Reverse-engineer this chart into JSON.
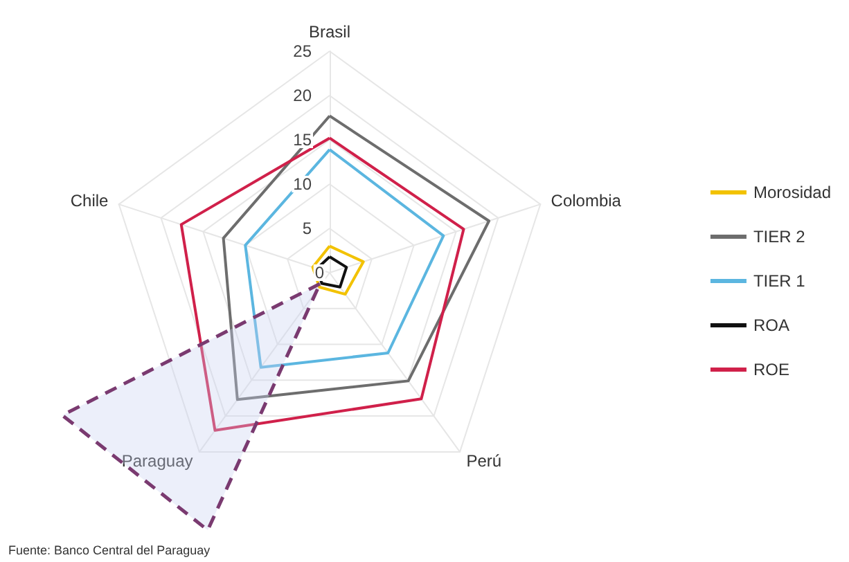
{
  "chart_data": {
    "type": "radar",
    "categories": [
      "Brasil",
      "Colombia",
      "Perú",
      "Paraguay",
      "Chile"
    ],
    "ylim": [
      0,
      25
    ],
    "yticks": [
      0,
      5,
      10,
      15,
      20,
      25
    ],
    "grid": true,
    "legend": "right",
    "marker": "none",
    "line_style": "solid",
    "annotations": [
      "Fuente: Banco Central del Paraguay"
    ],
    "series": [
      {
        "name": "Morosidad",
        "color": "#f2c200",
        "values": [
          3,
          4,
          3,
          2,
          2
        ]
      },
      {
        "name": "TIER 2",
        "color": "#6d6d6d",
        "values": [
          17.7,
          18.9,
          15.1,
          17.7,
          12.6
        ]
      },
      {
        "name": "TIER 1",
        "color": "#5bb6e0",
        "values": [
          13.9,
          13.5,
          11.2,
          13.2,
          10
        ]
      },
      {
        "name": "ROA",
        "color": "#111111",
        "values": [
          1.8,
          2,
          2,
          1.5,
          1.5
        ]
      },
      {
        "name": "ROE",
        "color": "#d0204a",
        "values": [
          15.2,
          15.9,
          17.6,
          22,
          17.6
        ]
      }
    ]
  }
}
